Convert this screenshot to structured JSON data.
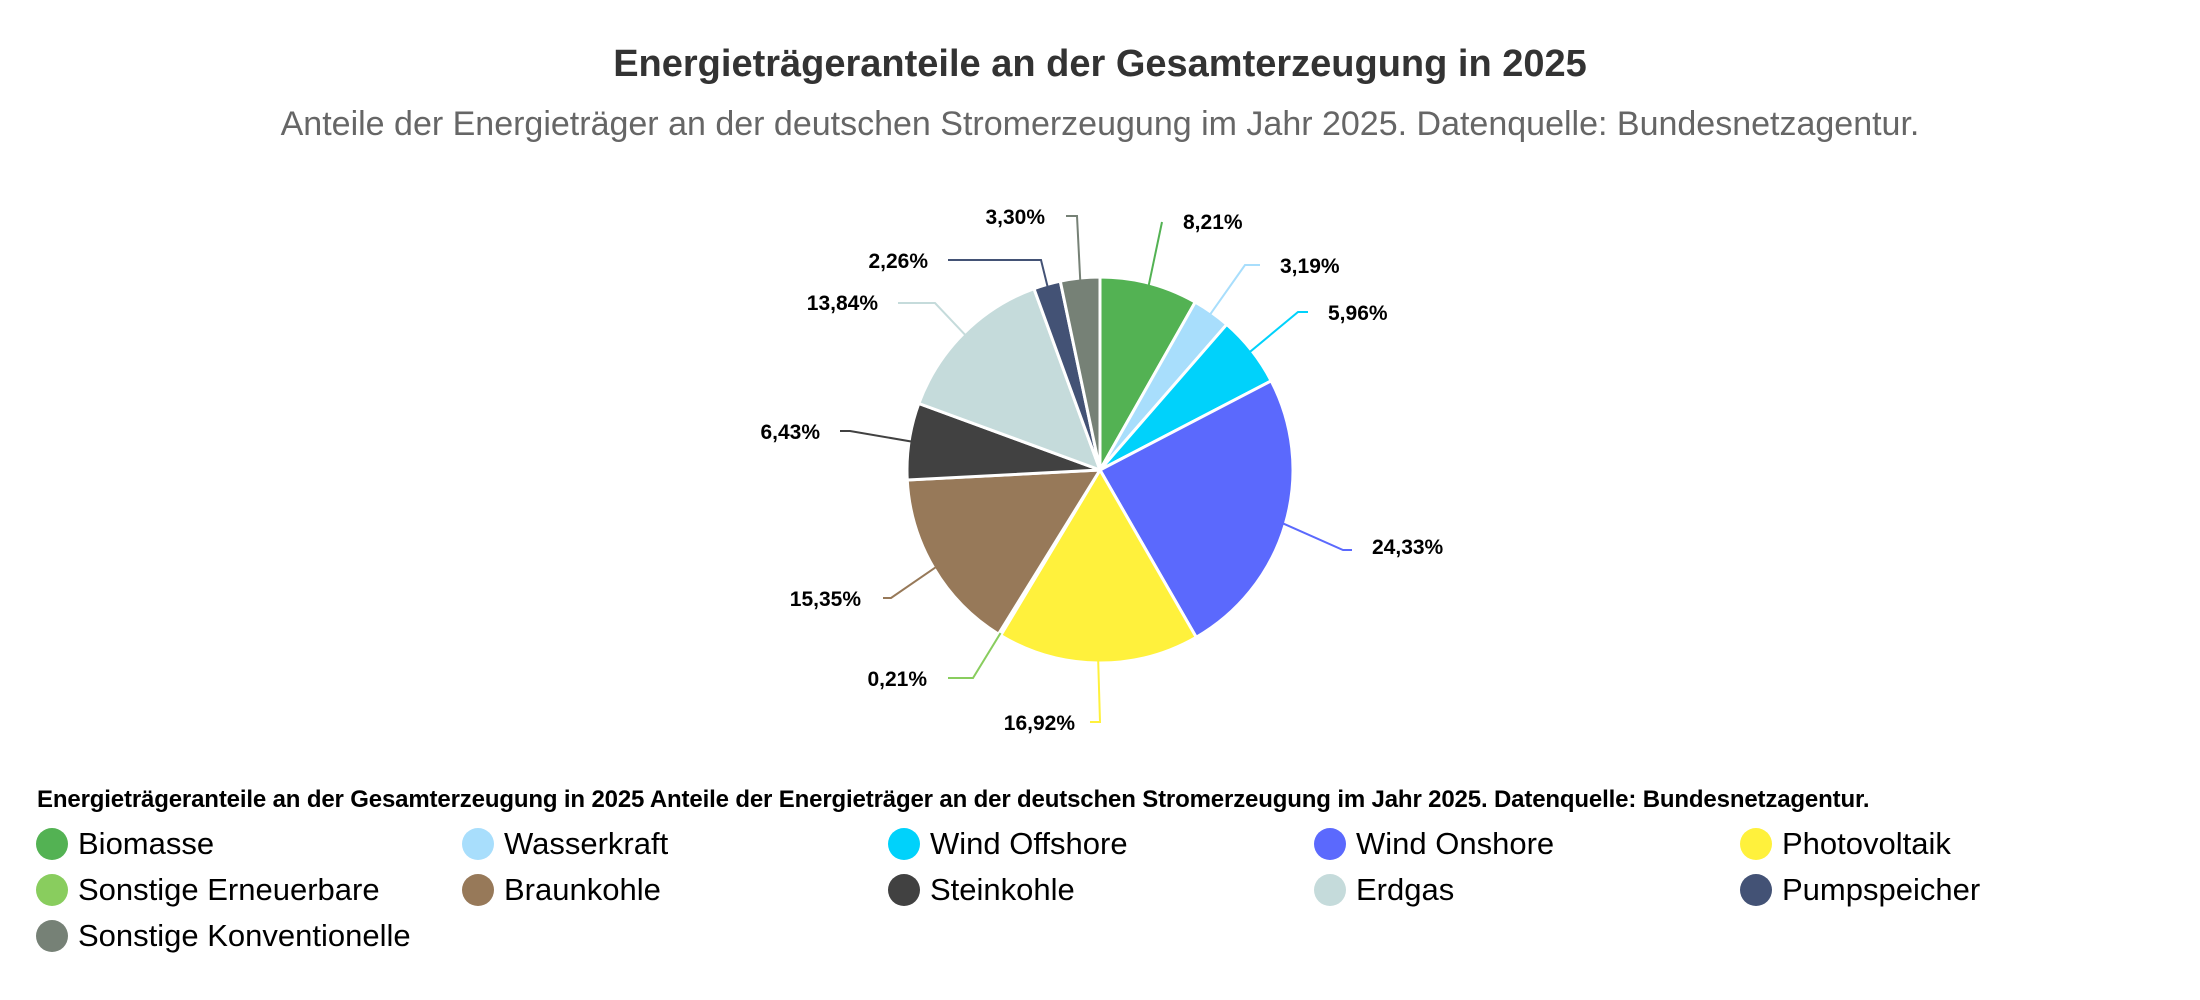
{
  "header": {
    "title": "Energieträgeranteile an der Gesamterzeugung in 2025",
    "subtitle": "Anteile der Energieträger an der deutschen Stromerzeugung im Jahr 2025. Datenquelle: Bundesnetzagentur."
  },
  "legend": {
    "title": "Energieträgeranteile an der Gesamterzeugung in 2025 Anteile der Energieträger an der deutschen Stromerzeugung im Jahr 2025. Datenquelle: Bundesnetzagentur.",
    "placement": "bottom"
  },
  "chart_data": {
    "type": "pie",
    "title": "Energieträgeranteile an der Gesamterzeugung in 2025",
    "subtitle": "Anteile der Energieträger an der deutschen Stromerzeugung im Jahr 2025. Datenquelle: Bundesnetzagentur.",
    "unit": "%",
    "start_angle_deg": 0,
    "direction": "clockwise",
    "slices": [
      {
        "name": "Biomasse",
        "value": 8.21,
        "label": "8,21%",
        "color": "#53b253"
      },
      {
        "name": "Wasserkraft",
        "value": 3.19,
        "label": "3,19%",
        "color": "#a8defc"
      },
      {
        "name": "Wind Offshore",
        "value": 5.96,
        "label": "5,96%",
        "color": "#00d2fb"
      },
      {
        "name": "Wind Onshore",
        "value": 24.33,
        "label": "24,33%",
        "color": "#5b69fd"
      },
      {
        "name": "Photovoltaik",
        "value": 16.92,
        "label": "16,92%",
        "color": "#fff13c"
      },
      {
        "name": "Sonstige Erneuerbare",
        "value": 0.21,
        "label": "0,21%",
        "color": "#89cd5e"
      },
      {
        "name": "Braunkohle",
        "value": 15.35,
        "label": "15,35%",
        "color": "#977959"
      },
      {
        "name": "Steinkohle",
        "value": 6.43,
        "label": "6,43%",
        "color": "#414141"
      },
      {
        "name": "Erdgas",
        "value": 13.84,
        "label": "13,84%",
        "color": "#c5dbdb"
      },
      {
        "name": "Pumpspeicher",
        "value": 2.26,
        "label": "2,26%",
        "color": "#435275"
      },
      {
        "name": "Sonstige Konventionelle",
        "value": 3.3,
        "label": "3,30%",
        "color": "#768176"
      }
    ]
  }
}
